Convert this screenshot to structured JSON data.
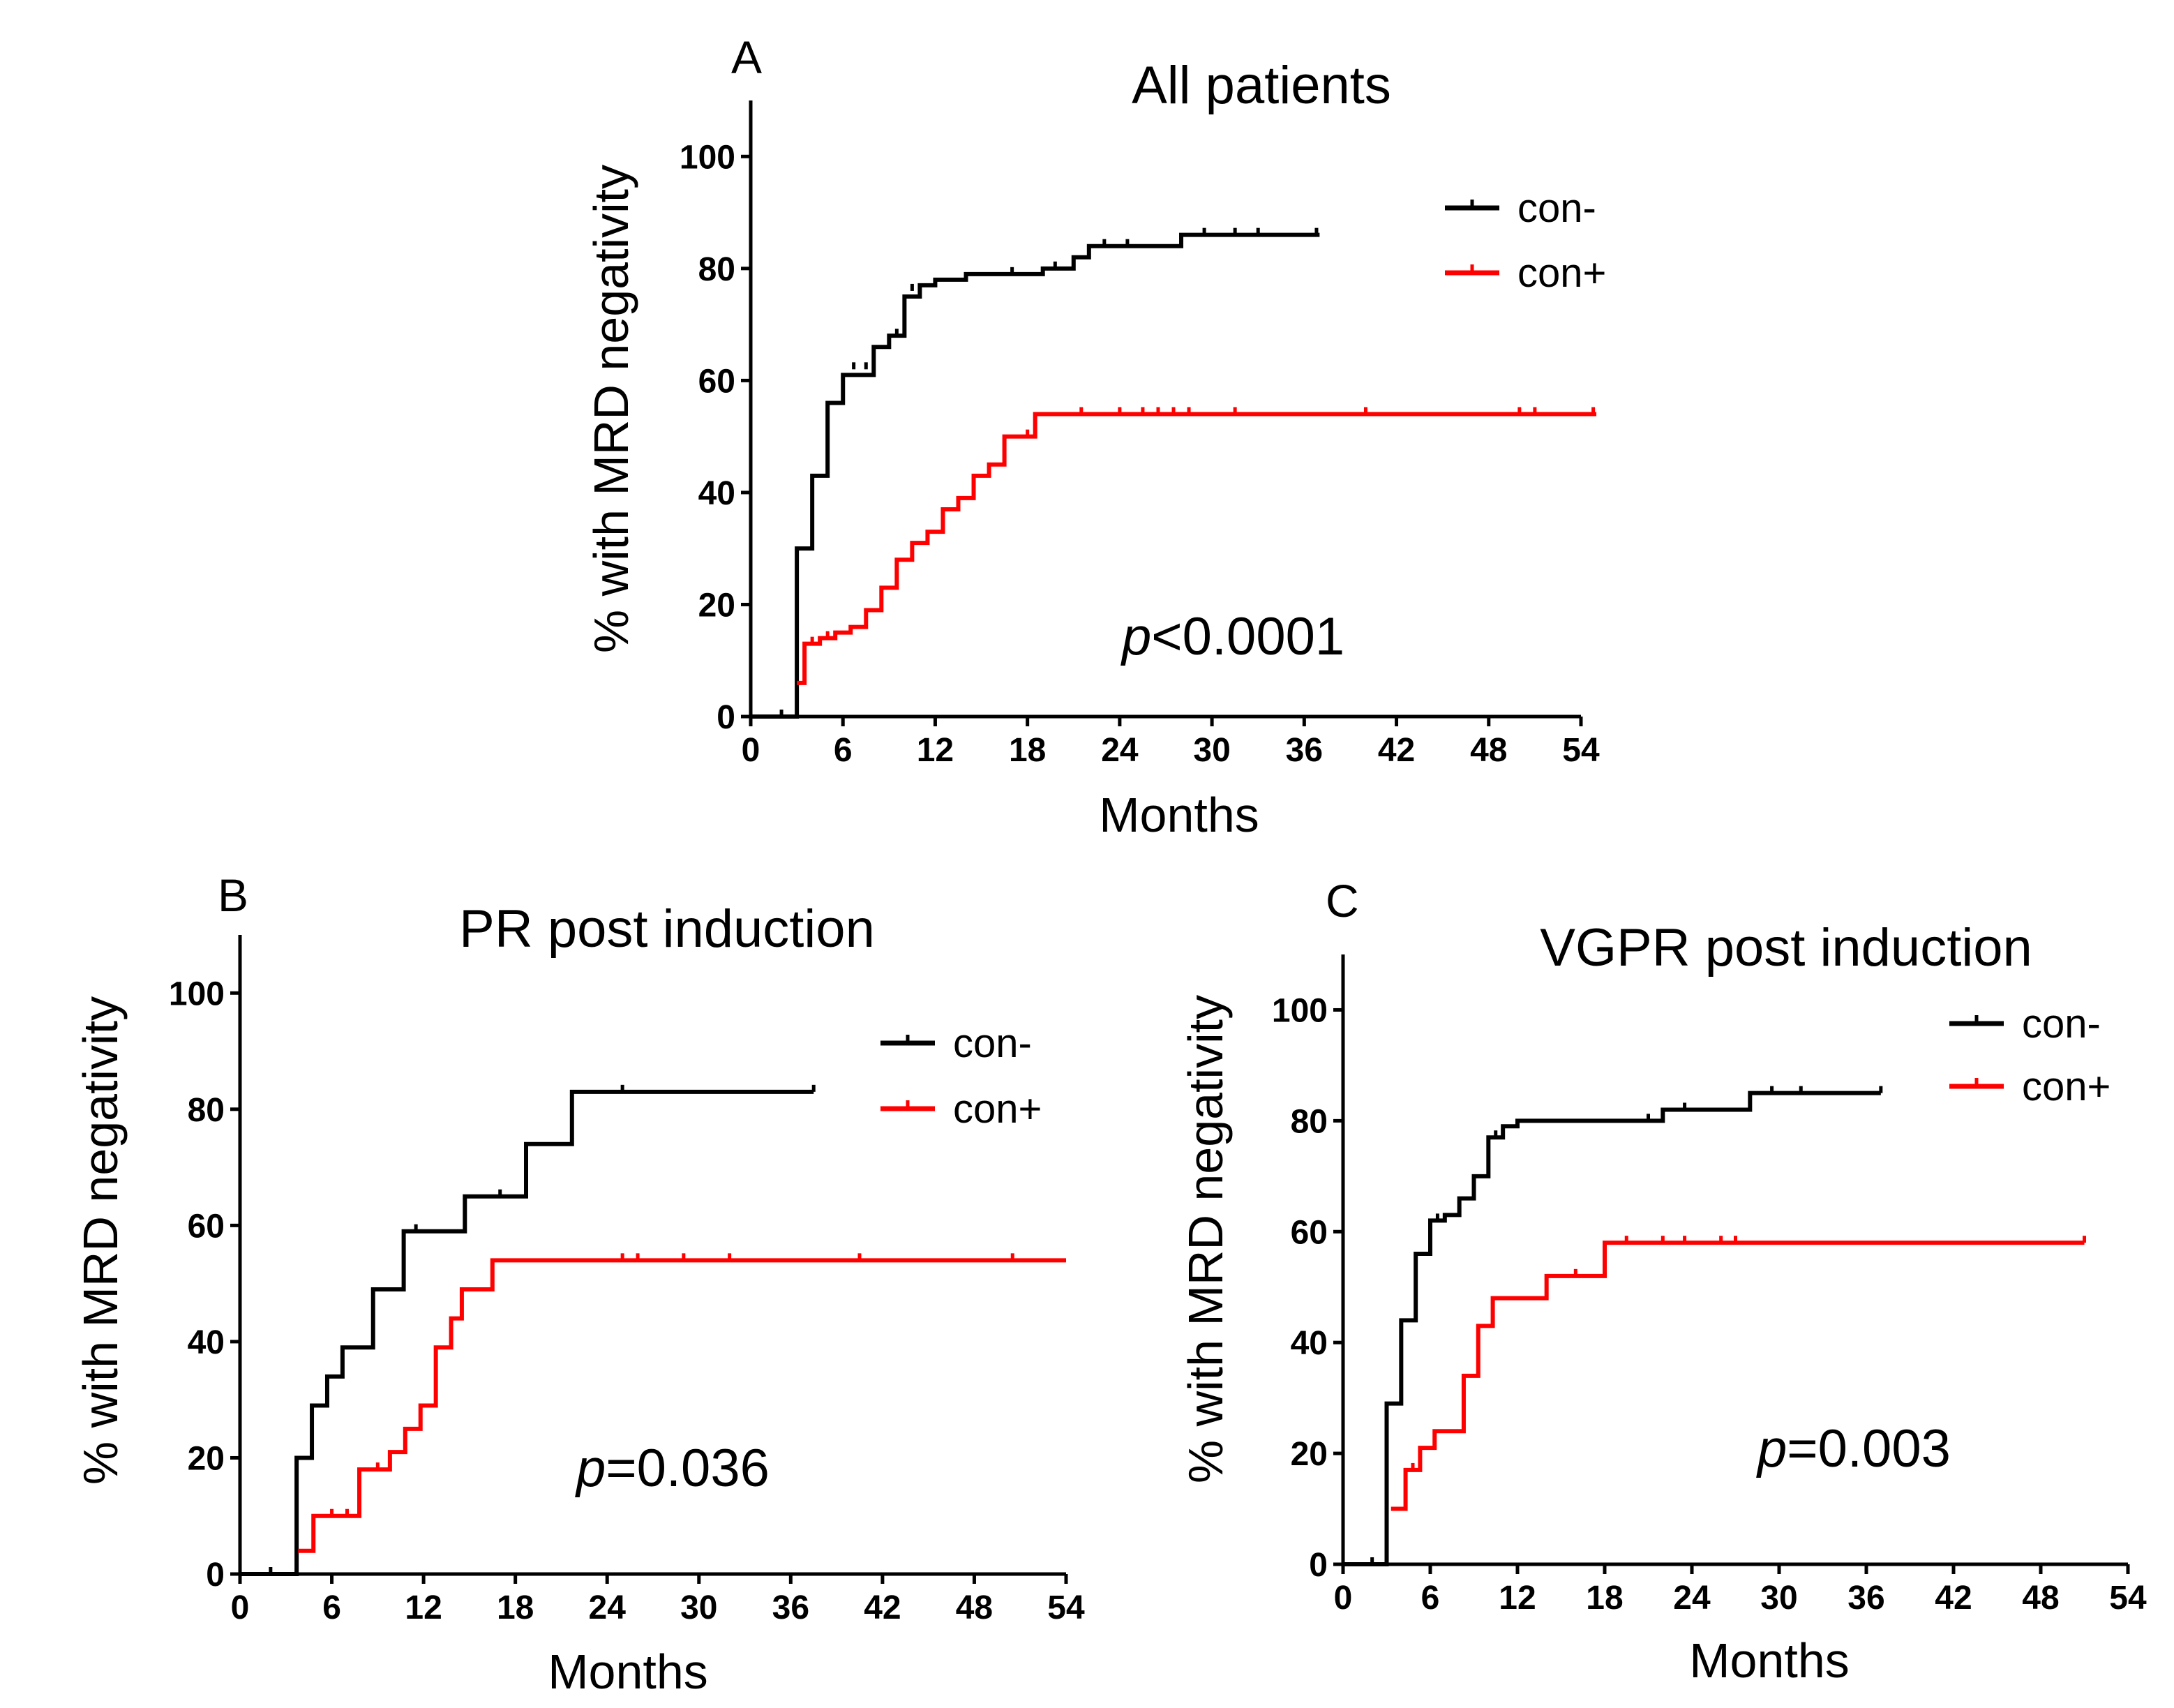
{
  "chart_data": [
    {
      "type": "line",
      "panel": "A",
      "title": "All patients",
      "xlabel": "Months",
      "ylabel": "% with MRD negativity",
      "xlim": [
        0,
        54
      ],
      "ylim": [
        0,
        110
      ],
      "xticks": [
        "0",
        "6",
        "12",
        "18",
        "24",
        "30",
        "36",
        "42",
        "48",
        "54"
      ],
      "yticks": [
        "0",
        "20",
        "40",
        "60",
        "80",
        "100"
      ],
      "legend": "top-right",
      "annotation": {
        "italic": "p",
        "text": "<0.0001"
      },
      "series": [
        {
          "name": "con-",
          "color": "#000000",
          "steps": [
            [
              0,
              0
            ],
            [
              3,
              30
            ],
            [
              4,
              43
            ],
            [
              5,
              56
            ],
            [
              6,
              61
            ],
            [
              8,
              66
            ],
            [
              9,
              68
            ],
            [
              10,
              75
            ],
            [
              11,
              77
            ],
            [
              12,
              78
            ],
            [
              14,
              79
            ],
            [
              19,
              80
            ],
            [
              21,
              82
            ],
            [
              22,
              84
            ],
            [
              28,
              86
            ],
            [
              37,
              86
            ]
          ],
          "censor": [
            [
              2,
              0
            ],
            [
              6.7,
              62
            ],
            [
              7.5,
              62
            ],
            [
              9.5,
              68
            ],
            [
              10.5,
              76
            ],
            [
              17,
              79
            ],
            [
              19.8,
              80
            ],
            [
              23,
              84
            ],
            [
              24.5,
              84
            ],
            [
              29.5,
              86
            ],
            [
              31.5,
              86
            ],
            [
              33,
              86
            ],
            [
              36.8,
              86
            ]
          ]
        },
        {
          "name": "con+",
          "color": "#ff0000",
          "steps": [
            [
              3,
              6
            ],
            [
              3.5,
              13
            ],
            [
              4.5,
              14
            ],
            [
              5.5,
              15
            ],
            [
              6.5,
              16
            ],
            [
              7.5,
              19
            ],
            [
              8.5,
              23
            ],
            [
              9.5,
              28
            ],
            [
              10.5,
              31
            ],
            [
              11.5,
              33
            ],
            [
              12.5,
              37
            ],
            [
              13.5,
              39
            ],
            [
              14.5,
              43
            ],
            [
              15.5,
              45
            ],
            [
              16.5,
              50
            ],
            [
              18.5,
              54
            ],
            [
              55,
              54
            ]
          ],
          "censor": [
            [
              4,
              13
            ],
            [
              5,
              14
            ],
            [
              18,
              50
            ],
            [
              21.5,
              54
            ],
            [
              24,
              54
            ],
            [
              25.5,
              54
            ],
            [
              26.5,
              54
            ],
            [
              27.5,
              54
            ],
            [
              28.5,
              54
            ],
            [
              31.5,
              54
            ],
            [
              40,
              54
            ],
            [
              50,
              54
            ],
            [
              51,
              54
            ],
            [
              54.8,
              54
            ]
          ]
        }
      ]
    },
    {
      "type": "line",
      "panel": "B",
      "title": "PR post induction",
      "xlabel": "Months",
      "ylabel": "% with MRD negativity",
      "xlim": [
        0,
        54
      ],
      "ylim": [
        0,
        110
      ],
      "xticks": [
        "0",
        "6",
        "12",
        "18",
        "24",
        "30",
        "36",
        "42",
        "48",
        "54"
      ],
      "yticks": [
        "0",
        "20",
        "40",
        "60",
        "80",
        "100"
      ],
      "legend": "top-right",
      "annotation": {
        "italic": "p",
        "text": "=0.036"
      },
      "series": [
        {
          "name": "con-",
          "color": "#000000",
          "steps": [
            [
              0,
              0
            ],
            [
              3.7,
              20
            ],
            [
              4.7,
              29
            ],
            [
              5.7,
              34
            ],
            [
              6.7,
              39
            ],
            [
              8.7,
              49
            ],
            [
              10.7,
              59
            ],
            [
              14.7,
              65
            ],
            [
              18.7,
              74
            ],
            [
              21.7,
              83
            ],
            [
              37.5,
              83
            ]
          ],
          "censor": [
            [
              2,
              0
            ],
            [
              11.5,
              59
            ],
            [
              17,
              65
            ],
            [
              25,
              83
            ],
            [
              37.5,
              83
            ]
          ]
        },
        {
          "name": "con+",
          "color": "#ff0000",
          "steps": [
            [
              3.8,
              4
            ],
            [
              4.8,
              10
            ],
            [
              7.8,
              18
            ],
            [
              9.8,
              21
            ],
            [
              10.8,
              25
            ],
            [
              11.8,
              29
            ],
            [
              12.8,
              39
            ],
            [
              13.8,
              44
            ],
            [
              14.5,
              49
            ],
            [
              16.5,
              54
            ],
            [
              54,
              54
            ]
          ],
          "censor": [
            [
              6,
              10
            ],
            [
              7,
              10
            ],
            [
              9,
              18
            ],
            [
              25,
              54
            ],
            [
              26,
              54
            ],
            [
              29,
              54
            ],
            [
              32,
              54
            ],
            [
              40.5,
              54
            ],
            [
              50.5,
              54
            ]
          ]
        }
      ]
    },
    {
      "type": "line",
      "panel": "C",
      "title": "VGPR post induction",
      "xlabel": "Months",
      "ylabel": "% with MRD negativity",
      "xlim": [
        0,
        54
      ],
      "ylim": [
        0,
        110
      ],
      "xticks": [
        "0",
        "6",
        "12",
        "18",
        "24",
        "30",
        "36",
        "42",
        "48",
        "54"
      ],
      "yticks": [
        "0",
        "20",
        "40",
        "60",
        "80",
        "100"
      ],
      "legend": "top-right",
      "annotation": {
        "italic": "p",
        "text": "=0.003"
      },
      "series": [
        {
          "name": "con-",
          "color": "#000000",
          "steps": [
            [
              0,
              0
            ],
            [
              3,
              29
            ],
            [
              4,
              44
            ],
            [
              5,
              56
            ],
            [
              6,
              62
            ],
            [
              7,
              63
            ],
            [
              8,
              66
            ],
            [
              9,
              70
            ],
            [
              10,
              77
            ],
            [
              11,
              79
            ],
            [
              12,
              80
            ],
            [
              22,
              82
            ],
            [
              28,
              85
            ],
            [
              37,
              85
            ]
          ],
          "censor": [
            [
              2,
              0
            ],
            [
              6.5,
              62
            ],
            [
              10.5,
              77
            ],
            [
              21,
              80
            ],
            [
              23.5,
              82
            ],
            [
              29.5,
              85
            ],
            [
              31.5,
              85
            ],
            [
              37,
              85
            ]
          ]
        },
        {
          "name": "con+",
          "color": "#ff0000",
          "steps": [
            [
              3.3,
              10
            ],
            [
              4.3,
              17
            ],
            [
              5.3,
              21
            ],
            [
              6.3,
              24
            ],
            [
              8.3,
              34
            ],
            [
              9.3,
              43
            ],
            [
              10.3,
              48
            ],
            [
              14,
              52
            ],
            [
              18,
              58
            ],
            [
              51,
              58
            ]
          ],
          "censor": [
            [
              4.8,
              17
            ],
            [
              16,
              52
            ],
            [
              19.5,
              58
            ],
            [
              22,
              58
            ],
            [
              23.5,
              58
            ],
            [
              26,
              58
            ],
            [
              27,
              58
            ],
            [
              51,
              58
            ]
          ]
        }
      ]
    }
  ]
}
